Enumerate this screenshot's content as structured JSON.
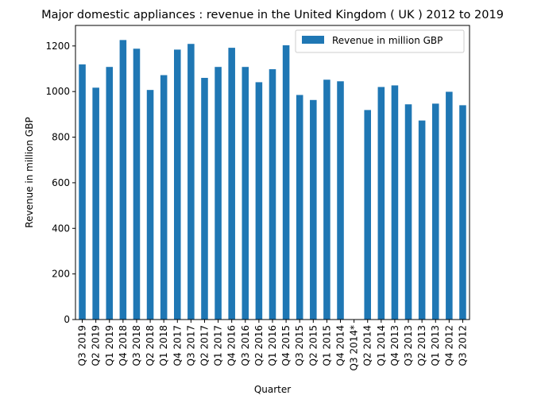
{
  "chart_data": {
    "type": "bar",
    "title": "Major domestic appliances : revenue in the United Kingdom ( UK ) 2012 to 2019",
    "xlabel": "Quarter",
    "ylabel": "Revenue in million GBP",
    "ylim": [
      0,
      1290
    ],
    "yticks": [
      0,
      200,
      400,
      600,
      800,
      1000,
      1200
    ],
    "grid": false,
    "legend_position": "top-right",
    "categories": [
      "Q3 2019",
      "Q2 2019",
      "Q1 2019",
      "Q4 2018",
      "Q3 2018",
      "Q2 2018",
      "Q1 2018",
      "Q4 2017",
      "Q3 2017",
      "Q2 2017",
      "Q1 2017",
      "Q4 2016",
      "Q3 2016",
      "Q2 2016",
      "Q1 2016",
      "Q4 2015",
      "Q3 2015",
      "Q2 2015",
      "Q1 2015",
      "Q4 2014",
      "Q3 2014*",
      "Q2 2014",
      "Q1 2014",
      "Q4 2013",
      "Q3 2013",
      "Q2 2013",
      "Q1 2013",
      "Q4 2012",
      "Q3 2012"
    ],
    "series": [
      {
        "name": "Revenue in million GBP",
        "color": "#1f77b4",
        "values": [
          1119,
          1017,
          1108,
          1226,
          1188,
          1007,
          1072,
          1184,
          1209,
          1060,
          1108,
          1192,
          1108,
          1041,
          1098,
          1203,
          985,
          963,
          1052,
          1045,
          null,
          919,
          1020,
          1027,
          944,
          873,
          947,
          999,
          940
        ]
      }
    ]
  }
}
